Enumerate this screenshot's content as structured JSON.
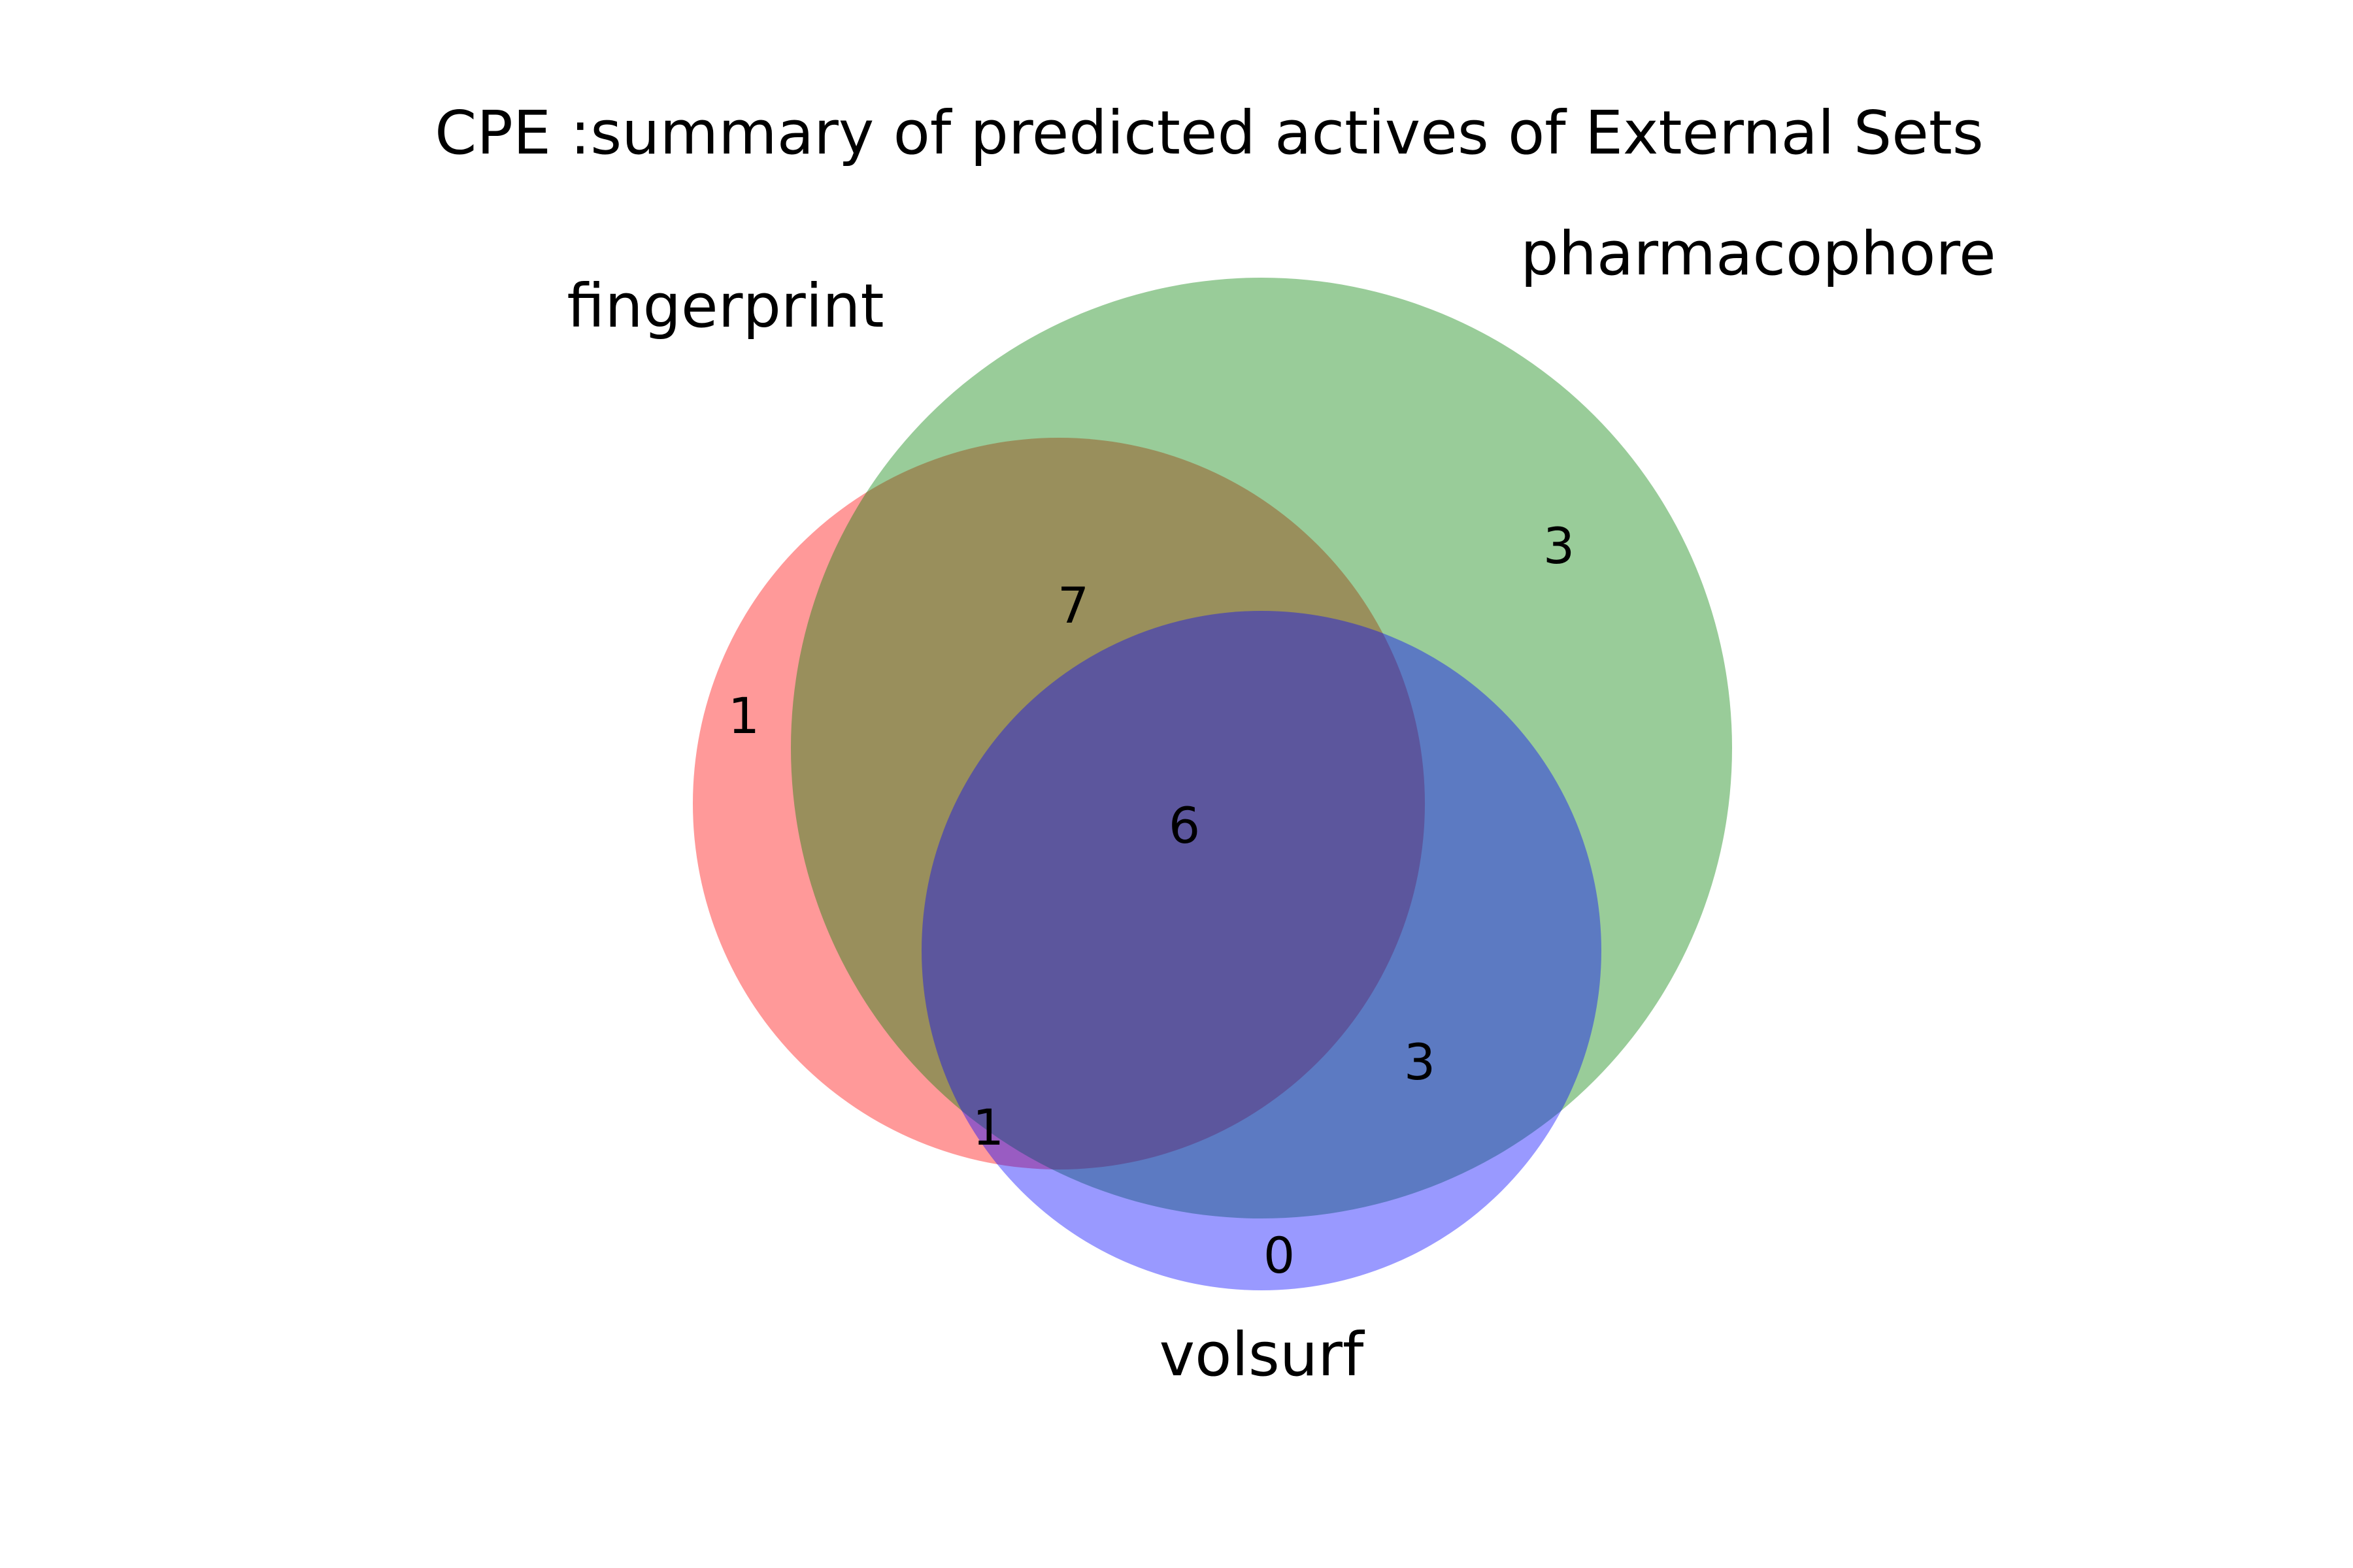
{
  "chart_data": {
    "type": "venn3",
    "title": "CPE :summary of predicted actives of External Sets",
    "sets": [
      {
        "name": "fingerprint",
        "color": "#ff0000",
        "opacity": 0.4
      },
      {
        "name": "pharmacophore",
        "color": "#008000",
        "opacity": 0.4
      },
      {
        "name": "volsurf",
        "color": "#0000ff",
        "opacity": 0.4
      }
    ],
    "regions": [
      {
        "sets": [
          "fingerprint"
        ],
        "value": "1"
      },
      {
        "sets": [
          "pharmacophore"
        ],
        "value": "3"
      },
      {
        "sets": [
          "fingerprint",
          "pharmacophore"
        ],
        "value": "7"
      },
      {
        "sets": [
          "fingerprint",
          "pharmacophore",
          "volsurf"
        ],
        "value": "6"
      },
      {
        "sets": [
          "pharmacophore",
          "volsurf"
        ],
        "value": "3"
      },
      {
        "sets": [
          "fingerprint",
          "volsurf"
        ],
        "value": "1"
      },
      {
        "sets": [
          "volsurf"
        ],
        "value": "0"
      }
    ]
  }
}
